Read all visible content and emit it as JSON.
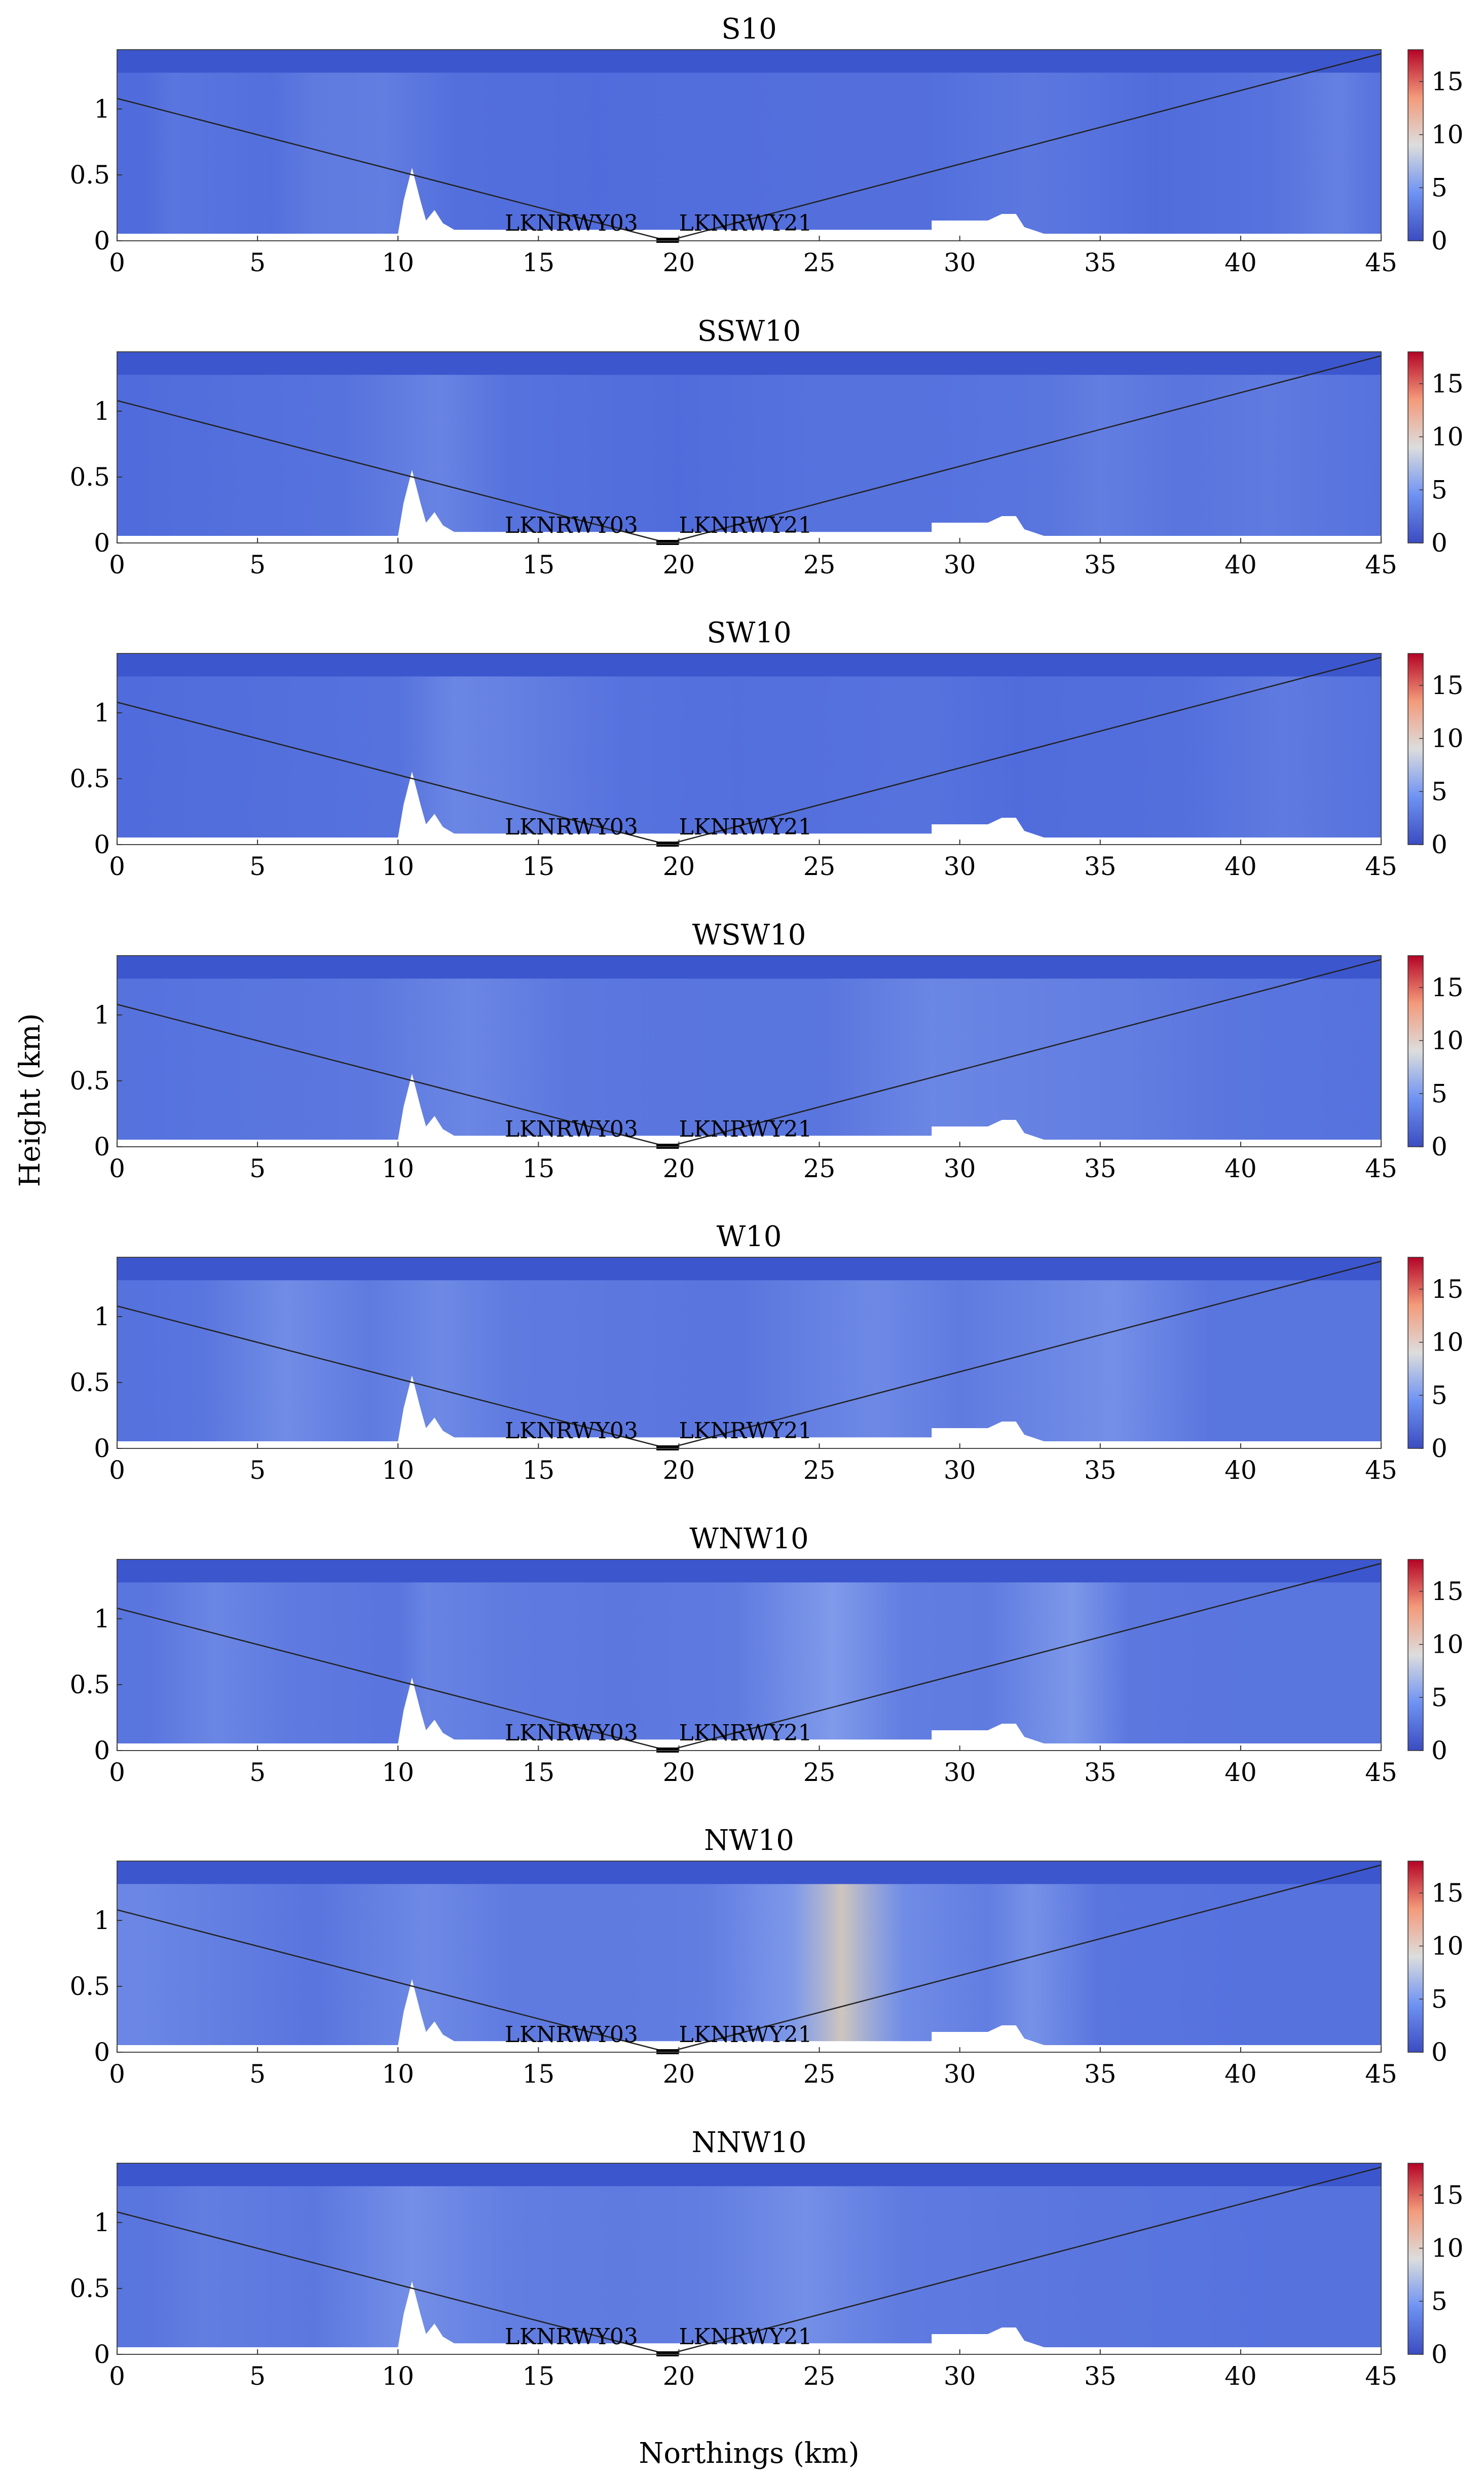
{
  "figure": {
    "ylabel": "Height (km)",
    "xlabel": "Northings (km)"
  },
  "chart_data": [
    {
      "type": "heatmap",
      "title": "S10",
      "xlim": [
        0,
        45
      ],
      "ylim": [
        0,
        1.45
      ],
      "colorbar": {
        "ticks": [
          0,
          5,
          10,
          15
        ],
        "range": [
          0,
          18
        ]
      },
      "runway_labels": [
        "LKNRWY03",
        "LKNRWY21"
      ],
      "intensity": [
        [
          1,
          0.3
        ],
        [
          2,
          0.45
        ],
        [
          5.5,
          0.35
        ],
        [
          7,
          0.55
        ],
        [
          9.5,
          0.6
        ],
        [
          12,
          0.35
        ],
        [
          17,
          0.3
        ],
        [
          25,
          0.35
        ],
        [
          29,
          0.35
        ],
        [
          32.5,
          0.5
        ],
        [
          37,
          0.3
        ],
        [
          41,
          0.4
        ],
        [
          43.5,
          0.65
        ],
        [
          45,
          0.4
        ]
      ]
    },
    {
      "type": "heatmap",
      "title": "SSW10",
      "xlim": [
        0,
        45
      ],
      "ylim": [
        0,
        1.45
      ],
      "colorbar": {
        "ticks": [
          0,
          5,
          10,
          15
        ],
        "range": [
          0,
          18
        ]
      },
      "runway_labels": [
        "LKNRWY03",
        "LKNRWY21"
      ],
      "intensity": [
        [
          1,
          0.3
        ],
        [
          4,
          0.35
        ],
        [
          8,
          0.4
        ],
        [
          11.5,
          0.7
        ],
        [
          14,
          0.4
        ],
        [
          20,
          0.3
        ],
        [
          25,
          0.4
        ],
        [
          29,
          0.4
        ],
        [
          33,
          0.45
        ],
        [
          35,
          0.6
        ],
        [
          38,
          0.45
        ],
        [
          41,
          0.55
        ],
        [
          45,
          0.4
        ]
      ]
    },
    {
      "type": "heatmap",
      "title": "SW10",
      "xlim": [
        0,
        45
      ],
      "ylim": [
        0,
        1.45
      ],
      "colorbar": {
        "ticks": [
          0,
          5,
          10,
          15
        ],
        "range": [
          0,
          18
        ]
      },
      "runway_labels": [
        "LKNRWY03",
        "LKNRWY21"
      ],
      "intensity": [
        [
          1,
          0.3
        ],
        [
          6,
          0.35
        ],
        [
          10,
          0.4
        ],
        [
          12,
          0.75
        ],
        [
          14,
          0.65
        ],
        [
          18,
          0.4
        ],
        [
          22,
          0.35
        ],
        [
          29,
          0.4
        ],
        [
          32,
          0.3
        ],
        [
          38,
          0.35
        ],
        [
          41.5,
          0.55
        ],
        [
          45,
          0.4
        ]
      ]
    },
    {
      "type": "heatmap",
      "title": "WSW10",
      "xlim": [
        0,
        45
      ],
      "ylim": [
        0,
        1.45
      ],
      "colorbar": {
        "ticks": [
          0,
          5,
          10,
          15
        ],
        "range": [
          0,
          18
        ]
      },
      "runway_labels": [
        "LKNRWY03",
        "LKNRWY21"
      ],
      "intensity": [
        [
          1,
          0.4
        ],
        [
          5,
          0.45
        ],
        [
          9,
          0.5
        ],
        [
          12.5,
          0.75
        ],
        [
          16,
          0.5
        ],
        [
          21,
          0.45
        ],
        [
          25,
          0.45
        ],
        [
          29,
          0.75
        ],
        [
          33,
          0.65
        ],
        [
          36,
          0.6
        ],
        [
          40,
          0.45
        ],
        [
          45,
          0.4
        ]
      ]
    },
    {
      "type": "heatmap",
      "title": "W10",
      "xlim": [
        0,
        45
      ],
      "ylim": [
        0,
        1.45
      ],
      "colorbar": {
        "ticks": [
          0,
          5,
          10,
          15
        ],
        "range": [
          0,
          18
        ]
      },
      "runway_labels": [
        "LKNRWY03",
        "LKNRWY21"
      ],
      "intensity": [
        [
          1,
          0.4
        ],
        [
          3,
          0.45
        ],
        [
          6,
          0.85
        ],
        [
          9,
          0.55
        ],
        [
          11.5,
          0.8
        ],
        [
          14,
          0.55
        ],
        [
          18,
          0.5
        ],
        [
          22,
          0.45
        ],
        [
          27,
          0.8
        ],
        [
          30,
          0.55
        ],
        [
          35.5,
          0.9
        ],
        [
          39,
          0.45
        ],
        [
          45,
          0.45
        ]
      ]
    },
    {
      "type": "heatmap",
      "title": "WNW10",
      "xlim": [
        0,
        45
      ],
      "ylim": [
        0,
        1.45
      ],
      "colorbar": {
        "ticks": [
          0,
          5,
          10,
          15
        ],
        "range": [
          0,
          18
        ]
      },
      "runway_labels": [
        "LKNRWY03",
        "LKNRWY21"
      ],
      "intensity": [
        [
          1,
          0.45
        ],
        [
          3.5,
          0.75
        ],
        [
          6,
          0.55
        ],
        [
          10,
          0.45
        ],
        [
          11,
          0.7
        ],
        [
          14,
          0.55
        ],
        [
          18,
          0.5
        ],
        [
          22,
          0.55
        ],
        [
          25.5,
          1.1
        ],
        [
          28,
          0.6
        ],
        [
          31,
          0.55
        ],
        [
          34,
          1.05
        ],
        [
          36,
          0.5
        ],
        [
          40,
          0.45
        ],
        [
          45,
          0.45
        ]
      ]
    },
    {
      "type": "heatmap",
      "title": "NW10",
      "xlim": [
        0,
        45
      ],
      "ylim": [
        0,
        1.45
      ],
      "colorbar": {
        "ticks": [
          0,
          5,
          10,
          15
        ],
        "range": [
          0,
          18
        ]
      },
      "runway_labels": [
        "LKNRWY03",
        "LKNRWY21"
      ],
      "intensity": [
        [
          1,
          0.75
        ],
        [
          4,
          0.6
        ],
        [
          7,
          0.45
        ],
        [
          11,
          0.8
        ],
        [
          14,
          0.55
        ],
        [
          18,
          0.55
        ],
        [
          21,
          0.6
        ],
        [
          24,
          1.05
        ],
        [
          25.8,
          1.6
        ],
        [
          28,
          0.85
        ],
        [
          31,
          0.6
        ],
        [
          32.5,
          0.95
        ],
        [
          35,
          0.45
        ],
        [
          40,
          0.4
        ],
        [
          45,
          0.4
        ]
      ]
    },
    {
      "type": "heatmap",
      "title": "NNW10",
      "xlim": [
        0,
        45
      ],
      "ylim": [
        0,
        1.45
      ],
      "colorbar": {
        "ticks": [
          0,
          5,
          10,
          15
        ],
        "range": [
          0,
          18
        ]
      },
      "runway_labels": [
        "LKNRWY03",
        "LKNRWY21"
      ],
      "intensity": [
        [
          1,
          0.45
        ],
        [
          3,
          0.6
        ],
        [
          7,
          0.5
        ],
        [
          10.5,
          0.9
        ],
        [
          14,
          0.6
        ],
        [
          18,
          0.55
        ],
        [
          21,
          0.6
        ],
        [
          24.5,
          0.9
        ],
        [
          28,
          0.55
        ],
        [
          32,
          0.5
        ],
        [
          36,
          0.45
        ],
        [
          41,
          0.4
        ],
        [
          45,
          0.4
        ]
      ]
    }
  ]
}
